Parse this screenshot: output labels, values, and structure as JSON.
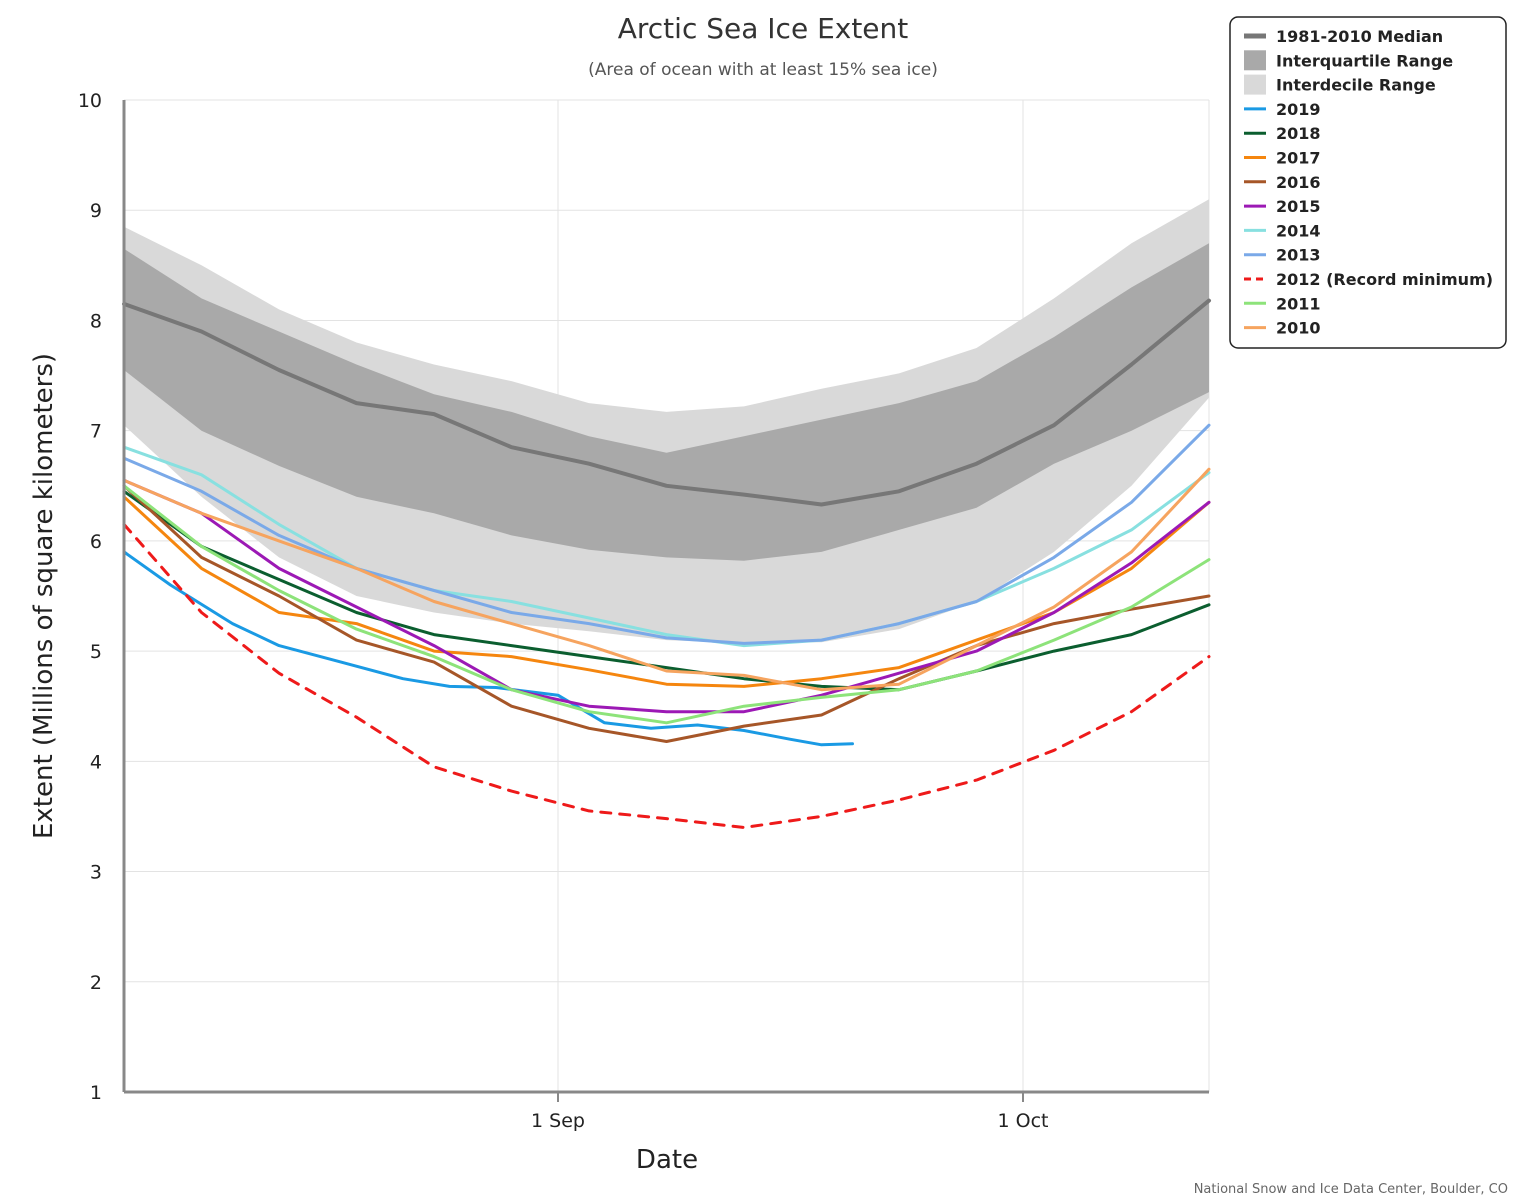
{
  "chart_data": {
    "type": "line",
    "title": "Arctic Sea Ice Extent",
    "subtitle": "(Area of ocean with at least 15% sea ice)",
    "xlabel": "Date",
    "ylabel": "Extent (Millions of square kilometers)",
    "credit": "National Snow and Ice Data Center, Boulder, CO",
    "x_range": [
      "Aug 4",
      "Oct 13"
    ],
    "x_unit": "date",
    "ylim": [
      1,
      10
    ],
    "y_ticks": [
      1,
      2,
      3,
      4,
      5,
      6,
      7,
      8,
      9,
      10
    ],
    "x_ticks": [
      {
        "date": "Sep 1",
        "label": "1 Sep"
      },
      {
        "date": "Oct 1",
        "label": "1 Oct"
      }
    ],
    "grid": true,
    "legend_placement": "top-right outside",
    "bands": [
      {
        "name": "Interdecile Range",
        "color": "#d9d9d9",
        "x": [
          "Aug 4",
          "Aug 9",
          "Aug 14",
          "Aug 19",
          "Aug 24",
          "Aug 29",
          "Sep 3",
          "Sep 8",
          "Sep 13",
          "Sep 18",
          "Sep 23",
          "Sep 28",
          "Oct 3",
          "Oct 8",
          "Oct 13"
        ],
        "upper": [
          8.85,
          8.5,
          8.1,
          7.8,
          7.6,
          7.45,
          7.25,
          7.17,
          7.22,
          7.38,
          7.52,
          7.75,
          8.2,
          8.7,
          9.1
        ],
        "lower": [
          7.05,
          6.4,
          5.85,
          5.5,
          5.35,
          5.25,
          5.18,
          5.1,
          5.07,
          5.08,
          5.2,
          5.45,
          5.9,
          6.5,
          7.3
        ]
      },
      {
        "name": "Interquartile Range",
        "color": "#a9a9a9",
        "x": [
          "Aug 4",
          "Aug 9",
          "Aug 14",
          "Aug 19",
          "Aug 24",
          "Aug 29",
          "Sep 3",
          "Sep 8",
          "Sep 13",
          "Sep 18",
          "Sep 23",
          "Sep 28",
          "Oct 3",
          "Oct 8",
          "Oct 13"
        ],
        "upper": [
          8.65,
          8.2,
          7.9,
          7.6,
          7.33,
          7.17,
          6.95,
          6.8,
          6.95,
          7.1,
          7.25,
          7.45,
          7.85,
          8.3,
          8.7
        ],
        "lower": [
          7.55,
          7.0,
          6.68,
          6.4,
          6.25,
          6.05,
          5.92,
          5.85,
          5.82,
          5.9,
          6.1,
          6.3,
          6.7,
          7.0,
          7.35
        ]
      }
    ],
    "series": [
      {
        "name": "1981-2010 Median",
        "color": "#777777",
        "width": 4,
        "dash": false,
        "x": [
          "Aug 4",
          "Aug 9",
          "Aug 14",
          "Aug 19",
          "Aug 24",
          "Aug 29",
          "Sep 3",
          "Sep 8",
          "Sep 13",
          "Sep 18",
          "Sep 23",
          "Sep 28",
          "Oct 3",
          "Oct 8",
          "Oct 13"
        ],
        "y": [
          8.15,
          7.9,
          7.55,
          7.25,
          7.15,
          6.85,
          6.7,
          6.5,
          6.42,
          6.33,
          6.45,
          6.7,
          7.05,
          7.6,
          8.18
        ]
      },
      {
        "name": "2019",
        "color": "#1a9ae4",
        "width": 3,
        "dash": false,
        "x": [
          "Aug 4",
          "Aug 7",
          "Aug 11",
          "Aug 14",
          "Aug 18",
          "Aug 22",
          "Aug 25",
          "Aug 28",
          "Sep 1",
          "Sep 4",
          "Sep 7",
          "Sep 10",
          "Sep 13",
          "Sep 16",
          "Sep 18",
          "Sep 20"
        ],
        "y": [
          5.9,
          5.6,
          5.25,
          5.05,
          4.9,
          4.75,
          4.68,
          4.67,
          4.6,
          4.35,
          4.3,
          4.33,
          4.28,
          4.2,
          4.15,
          4.16
        ]
      },
      {
        "name": "2018",
        "color": "#0b5e2f",
        "width": 3,
        "dash": false,
        "x": [
          "Aug 4",
          "Aug 9",
          "Aug 14",
          "Aug 19",
          "Aug 24",
          "Aug 29",
          "Sep 3",
          "Sep 8",
          "Sep 13",
          "Sep 18",
          "Sep 23",
          "Sep 28",
          "Oct 3",
          "Oct 8",
          "Oct 13"
        ],
        "y": [
          6.45,
          5.95,
          5.65,
          5.35,
          5.15,
          5.05,
          4.95,
          4.85,
          4.75,
          4.68,
          4.65,
          4.82,
          5.0,
          5.15,
          5.42
        ]
      },
      {
        "name": "2017",
        "color": "#f5860f",
        "width": 3,
        "dash": false,
        "x": [
          "Aug 4",
          "Aug 9",
          "Aug 14",
          "Aug 19",
          "Aug 24",
          "Aug 29",
          "Sep 3",
          "Sep 8",
          "Sep 13",
          "Sep 18",
          "Sep 23",
          "Sep 28",
          "Oct 3",
          "Oct 8",
          "Oct 13"
        ],
        "y": [
          6.4,
          5.75,
          5.35,
          5.25,
          5.0,
          4.95,
          4.83,
          4.7,
          4.68,
          4.75,
          4.85,
          5.1,
          5.35,
          5.75,
          6.35
        ]
      },
      {
        "name": "2016",
        "color": "#a65628",
        "width": 3,
        "dash": false,
        "x": [
          "Aug 4",
          "Aug 9",
          "Aug 14",
          "Aug 19",
          "Aug 24",
          "Aug 29",
          "Sep 3",
          "Sep 8",
          "Sep 13",
          "Sep 18",
          "Sep 23",
          "Sep 28",
          "Oct 3",
          "Oct 8",
          "Oct 13"
        ],
        "y": [
          6.5,
          5.85,
          5.5,
          5.1,
          4.9,
          4.5,
          4.3,
          4.18,
          4.32,
          4.42,
          4.75,
          5.05,
          5.25,
          5.38,
          5.5
        ]
      },
      {
        "name": "2015",
        "color": "#9c19b5",
        "width": 3,
        "dash": false,
        "x": [
          "Aug 4",
          "Aug 9",
          "Aug 14",
          "Aug 19",
          "Aug 24",
          "Aug 29",
          "Sep 3",
          "Sep 8",
          "Sep 13",
          "Sep 18",
          "Sep 23",
          "Sep 28",
          "Oct 3",
          "Oct 8",
          "Oct 13"
        ],
        "y": [
          6.55,
          6.25,
          5.75,
          5.4,
          5.05,
          4.65,
          4.5,
          4.45,
          4.45,
          4.6,
          4.8,
          5.0,
          5.35,
          5.8,
          6.35
        ]
      },
      {
        "name": "2014",
        "color": "#88e0e0",
        "width": 3,
        "dash": false,
        "x": [
          "Aug 4",
          "Aug 9",
          "Aug 14",
          "Aug 19",
          "Aug 24",
          "Aug 29",
          "Sep 3",
          "Sep 8",
          "Sep 13",
          "Sep 18",
          "Sep 23",
          "Sep 28",
          "Oct 3",
          "Oct 8",
          "Oct 13"
        ],
        "y": [
          6.85,
          6.6,
          6.15,
          5.75,
          5.55,
          5.45,
          5.3,
          5.15,
          5.05,
          5.1,
          5.25,
          5.45,
          5.75,
          6.1,
          6.62
        ]
      },
      {
        "name": "2013",
        "color": "#7aa9e8",
        "width": 3,
        "dash": false,
        "x": [
          "Aug 4",
          "Aug 9",
          "Aug 14",
          "Aug 19",
          "Aug 24",
          "Aug 29",
          "Sep 3",
          "Sep 8",
          "Sep 13",
          "Sep 18",
          "Sep 23",
          "Sep 28",
          "Oct 3",
          "Oct 8",
          "Oct 13"
        ],
        "y": [
          6.75,
          6.45,
          6.05,
          5.75,
          5.55,
          5.35,
          5.25,
          5.12,
          5.07,
          5.1,
          5.25,
          5.45,
          5.85,
          6.35,
          7.05
        ]
      },
      {
        "name": "2012 (Record minimum)",
        "color": "#ee1a1a",
        "width": 3,
        "dash": true,
        "x": [
          "Aug 4",
          "Aug 9",
          "Aug 14",
          "Aug 19",
          "Aug 24",
          "Aug 29",
          "Sep 3",
          "Sep 8",
          "Sep 13",
          "Sep 18",
          "Sep 23",
          "Sep 28",
          "Oct 3",
          "Oct 8",
          "Oct 13"
        ],
        "y": [
          6.15,
          5.35,
          4.8,
          4.4,
          3.95,
          3.73,
          3.55,
          3.48,
          3.4,
          3.5,
          3.65,
          3.83,
          4.1,
          4.45,
          4.95
        ]
      },
      {
        "name": "2011",
        "color": "#8de37a",
        "width": 3,
        "dash": false,
        "x": [
          "Aug 4",
          "Aug 9",
          "Aug 14",
          "Aug 19",
          "Aug 24",
          "Aug 29",
          "Sep 3",
          "Sep 8",
          "Sep 13",
          "Sep 18",
          "Sep 23",
          "Sep 28",
          "Oct 3",
          "Oct 8",
          "Oct 13"
        ],
        "y": [
          6.5,
          5.95,
          5.55,
          5.2,
          4.95,
          4.65,
          4.45,
          4.35,
          4.5,
          4.58,
          4.65,
          4.82,
          5.1,
          5.4,
          5.83
        ]
      },
      {
        "name": "2010",
        "color": "#f6a45f",
        "width": 3,
        "dash": false,
        "x": [
          "Aug 4",
          "Aug 9",
          "Aug 14",
          "Aug 19",
          "Aug 24",
          "Aug 29",
          "Sep 3",
          "Sep 8",
          "Sep 13",
          "Sep 18",
          "Sep 23",
          "Sep 28",
          "Oct 3",
          "Oct 8",
          "Oct 13"
        ],
        "y": [
          6.55,
          6.25,
          6.0,
          5.75,
          5.45,
          5.25,
          5.05,
          4.82,
          4.78,
          4.65,
          4.7,
          5.05,
          5.4,
          5.9,
          6.65
        ]
      }
    ]
  }
}
